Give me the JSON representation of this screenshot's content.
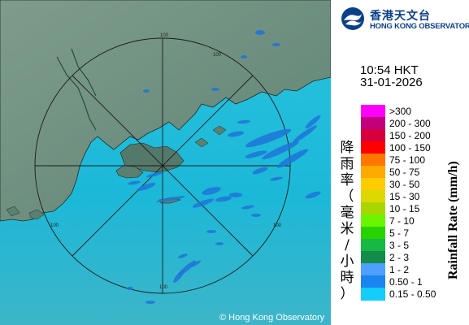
{
  "header": {
    "logo_zh": "香港天文台",
    "logo_en": "HONG KONG OBSERVATORY"
  },
  "timestamp": {
    "time": "10:54 HKT",
    "date": "31-01-2026"
  },
  "legend": {
    "title_en": "Rainfall Rate (mm/h)",
    "title_zh": [
      "降",
      "雨",
      "率",
      "（",
      "毫",
      "米",
      "/",
      "小",
      "時",
      "）"
    ],
    "items": [
      {
        "label": ">300",
        "color": "#ff00ff"
      },
      {
        "label": "200 - 300",
        "color": "#c1007c"
      },
      {
        "label": "150 - 200",
        "color": "#d7003c"
      },
      {
        "label": "100 - 150",
        "color": "#fe0000"
      },
      {
        "label": "75 - 100",
        "color": "#ff7700"
      },
      {
        "label": "50 - 75",
        "color": "#ffaa00"
      },
      {
        "label": "30 - 50",
        "color": "#ffcc00"
      },
      {
        "label": "15 - 30",
        "color": "#dcd800"
      },
      {
        "label": "10 - 15",
        "color": "#aad600"
      },
      {
        "label": "7 - 10",
        "color": "#6cf500"
      },
      {
        "label": "5 - 7",
        "color": "#28d400"
      },
      {
        "label": "3 - 5",
        "color": "#18b845"
      },
      {
        "label": "2 - 3",
        "color": "#138b4b"
      },
      {
        "label": "1 - 2",
        "color": "#4f9fff"
      },
      {
        "label": "0.50 - 1",
        "color": "#1a84f0"
      },
      {
        "label": "0.15 - 0.50",
        "color": "#13cdfd"
      }
    ]
  },
  "map": {
    "range_labels": [
      "100",
      "100",
      "100",
      "100",
      "100"
    ],
    "copyright": "© Hong Kong Observatory",
    "colors": {
      "sea": "#19bcd9",
      "land": "#6f8f80",
      "echo": "#1e74d8"
    }
  }
}
